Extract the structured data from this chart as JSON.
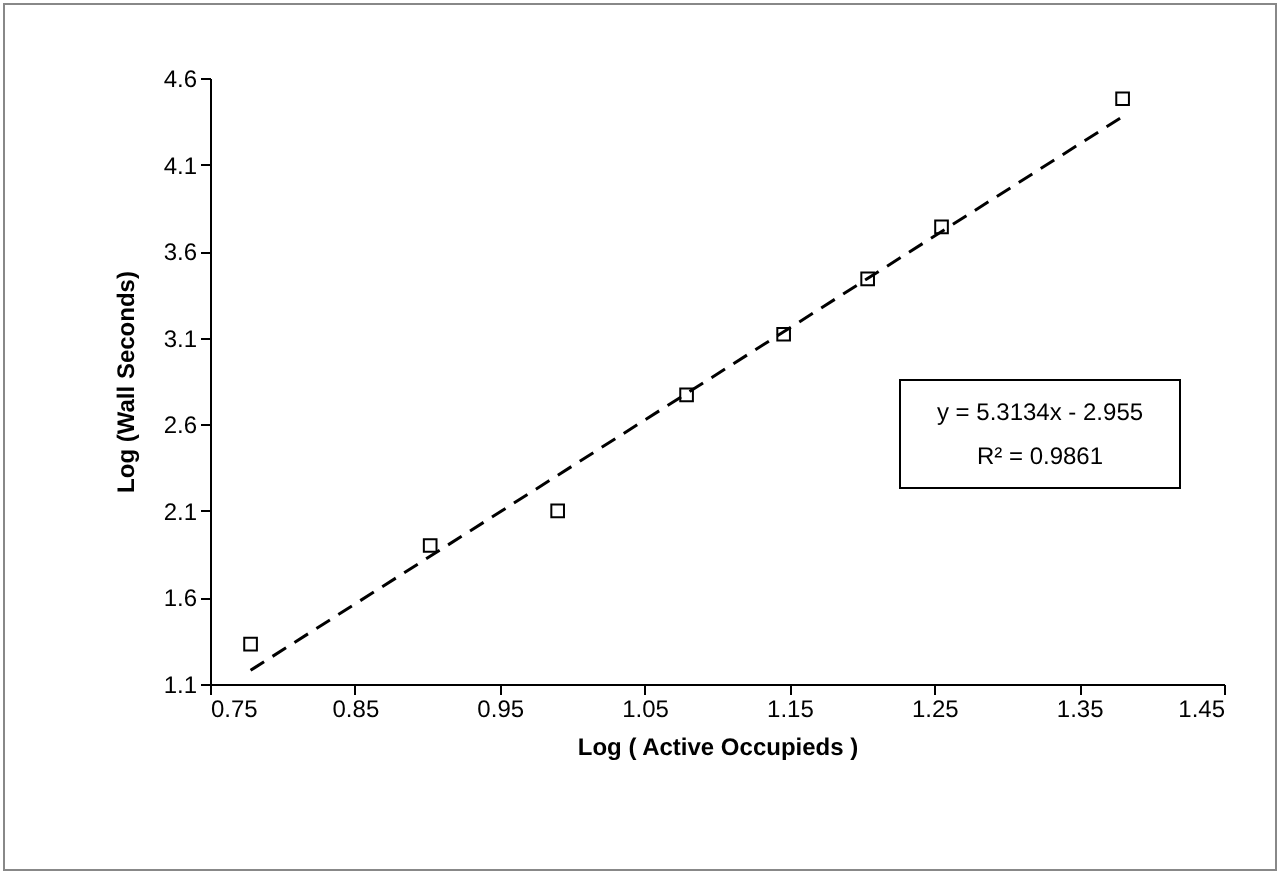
{
  "chart_data": {
    "type": "scatter",
    "xlabel": "Log ( Active Occupieds )",
    "ylabel": "Log (Wall Seconds)",
    "series": [
      {
        "type": "scatter",
        "color": "#000000",
        "marker": "square",
        "x": [
          0.778,
          0.902,
          0.99,
          1.079,
          1.146,
          1.204,
          1.255,
          1.38
        ],
        "values": [
          1.33,
          1.9,
          2.1,
          2.77,
          3.12,
          3.44,
          3.74,
          4.48
        ]
      },
      {
        "type": "line",
        "color": "#000000",
        "line_style": "dashed",
        "marker": "none",
        "x": [
          0.778,
          1.38
        ],
        "values": [
          1.179,
          4.377
        ]
      }
    ],
    "annotations": [
      "y = 5.3134x - 2.955",
      "R² = 0.9861"
    ],
    "xlim": [
      0.75,
      1.45
    ],
    "xticks": [
      0.75,
      0.85,
      0.95,
      1.05,
      1.15,
      1.25,
      1.35,
      1.45
    ],
    "ylim": [
      1.1,
      4.6
    ],
    "yticks": [
      1.1,
      1.6,
      2.1,
      2.6,
      3.1,
      3.6,
      4.1,
      4.6
    ],
    "grid": false,
    "legend": false
  }
}
